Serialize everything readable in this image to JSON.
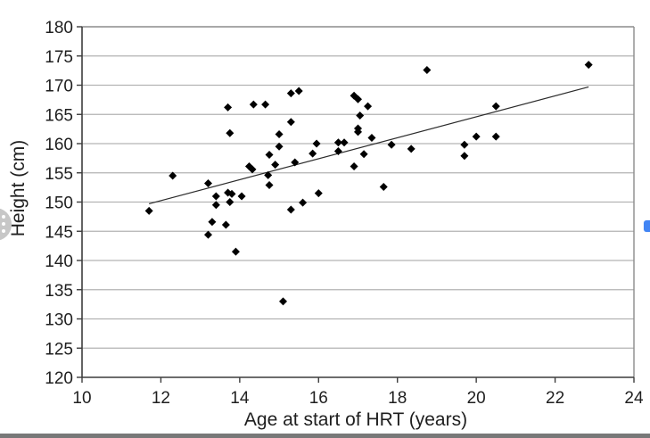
{
  "chart_data": {
    "type": "scatter",
    "xlabel": "Age at start of HRT (years)",
    "ylabel": "Height (cm)",
    "xlim": [
      10,
      24
    ],
    "ylim": [
      120,
      180
    ],
    "x_ticks": [
      10,
      12,
      14,
      16,
      18,
      20,
      22,
      24
    ],
    "y_ticks": [
      120,
      125,
      130,
      135,
      140,
      145,
      150,
      155,
      160,
      165,
      170,
      175,
      180
    ],
    "grid": "horizontal-only",
    "legend": "none",
    "marker": "diamond",
    "marker_color": "#000000",
    "gridline_color": "#b3b3b3",
    "frame_color": "#8c8c8c",
    "axis_color": "#3d3d3d",
    "text_color": "#1f1f1f",
    "points": [
      [
        11.7,
        148.5
      ],
      [
        12.3,
        154.5
      ],
      [
        13.2,
        153.2
      ],
      [
        13.2,
        144.4
      ],
      [
        13.3,
        146.6
      ],
      [
        13.4,
        151.0
      ],
      [
        13.4,
        149.5
      ],
      [
        13.65,
        146.1
      ],
      [
        13.7,
        151.6
      ],
      [
        13.8,
        151.4
      ],
      [
        13.75,
        150.0
      ],
      [
        13.9,
        141.5
      ],
      [
        14.05,
        151.0
      ],
      [
        13.7,
        166.2
      ],
      [
        13.75,
        161.8
      ],
      [
        14.35,
        166.7
      ],
      [
        14.65,
        166.7
      ],
      [
        14.24,
        156.1
      ],
      [
        14.32,
        155.6
      ],
      [
        14.75,
        158.1
      ],
      [
        14.72,
        154.6
      ],
      [
        14.75,
        152.9
      ],
      [
        14.9,
        156.4
      ],
      [
        15.0,
        161.6
      ],
      [
        15.0,
        159.5
      ],
      [
        15.3,
        168.6
      ],
      [
        15.5,
        169.0
      ],
      [
        15.3,
        163.7
      ],
      [
        15.4,
        156.8
      ],
      [
        15.1,
        133.0
      ],
      [
        15.3,
        148.7
      ],
      [
        15.6,
        149.9
      ],
      [
        16.0,
        151.5
      ],
      [
        15.85,
        158.3
      ],
      [
        15.95,
        160.0
      ],
      [
        16.5,
        160.2
      ],
      [
        16.65,
        160.2
      ],
      [
        16.5,
        158.7
      ],
      [
        16.9,
        156.1
      ],
      [
        16.9,
        168.2
      ],
      [
        17.0,
        167.6
      ],
      [
        17.25,
        166.4
      ],
      [
        17.05,
        164.8
      ],
      [
        17.0,
        162.6
      ],
      [
        17.0,
        162.0
      ],
      [
        17.35,
        161.0
      ],
      [
        17.15,
        158.2
      ],
      [
        17.65,
        152.6
      ],
      [
        17.85,
        159.8
      ],
      [
        18.35,
        159.1
      ],
      [
        18.75,
        172.6
      ],
      [
        19.7,
        159.8
      ],
      [
        19.7,
        157.9
      ],
      [
        20.0,
        161.2
      ],
      [
        20.5,
        161.2
      ],
      [
        20.5,
        166.4
      ],
      [
        22.85,
        173.5
      ]
    ],
    "trend_line": {
      "x1": 11.7,
      "y1": 149.7,
      "x2": 22.85,
      "y2": 169.7,
      "color": "#2b2b2b"
    }
  },
  "overlays": {
    "more_options": "more-options",
    "blue_widget": "edge-handle"
  }
}
